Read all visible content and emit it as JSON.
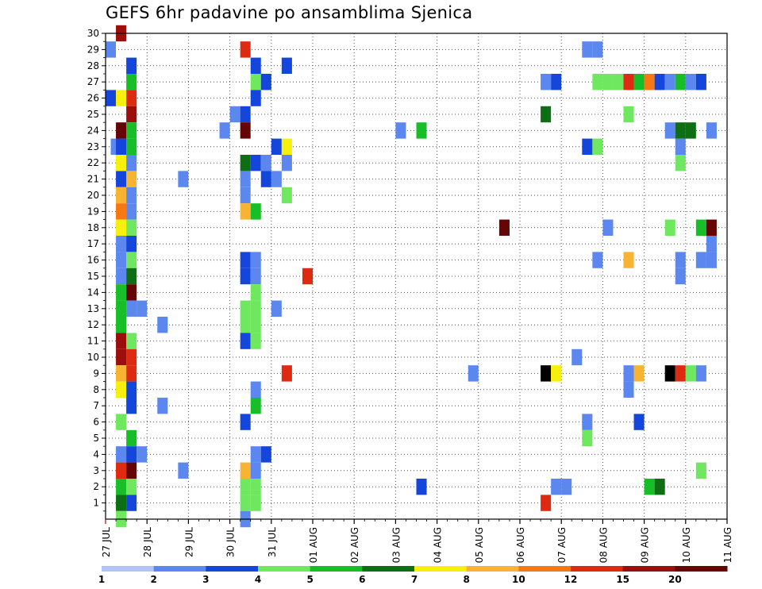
{
  "chart_data": {
    "type": "heatmap",
    "title": "GEFS 6hr padavine po ansamblima Sjenica",
    "xlabel": "",
    "ylabel": "",
    "x_tick_labels": [
      "27 JUL",
      "28 JUL",
      "29 JUL",
      "30 JUL",
      "31 JUL",
      "01 AUG",
      "02 AUG",
      "03 AUG",
      "04 AUG",
      "05 AUG",
      "06 AUG",
      "07 AUG",
      "08 AUG",
      "09 AUG",
      "10 AUG",
      "11 AUG"
    ],
    "x_range_days": [
      0,
      15
    ],
    "y_tick_labels": [
      "1",
      "2",
      "3",
      "4",
      "5",
      "6",
      "7",
      "8",
      "9",
      "10",
      "11",
      "12",
      "13",
      "14",
      "15",
      "16",
      "17",
      "18",
      "19",
      "20",
      "21",
      "22",
      "23",
      "24",
      "25",
      "26",
      "27",
      "28",
      "29",
      "30"
    ],
    "y_range": [
      0,
      30
    ],
    "grid": true,
    "colorbar": {
      "labels": [
        "1",
        "2",
        "3",
        "4",
        "5",
        "6",
        "7",
        "8",
        "10",
        "12",
        "15",
        "20"
      ],
      "colors": [
        "#b0c4f5",
        "#5b87ee",
        "#1546dc",
        "#6fe860",
        "#17be28",
        "#0d6e14",
        "#f7ef0c",
        "#f9b332",
        "#f77812",
        "#dd2a10",
        "#9c0d0d",
        "#650505"
      ]
    },
    "cells": [
      [
        0.125,
        29,
        1
      ],
      [
        0.125,
        26,
        2
      ],
      [
        0.25,
        23,
        1
      ],
      [
        0.375,
        23,
        2
      ],
      [
        0.375,
        21,
        2
      ],
      [
        0.375,
        16,
        1
      ],
      [
        0.375,
        17,
        1
      ],
      [
        0.375,
        12,
        4
      ],
      [
        0.375,
        11,
        10
      ],
      [
        0.375,
        10,
        10
      ],
      [
        0.375,
        9,
        7
      ],
      [
        0.375,
        8,
        6
      ],
      [
        0.375,
        6,
        3
      ],
      [
        0.375,
        4,
        1
      ],
      [
        0.375,
        3,
        9
      ],
      [
        0.375,
        2,
        4
      ],
      [
        0.375,
        1,
        5
      ],
      [
        0.375,
        0,
        3
      ],
      [
        0.375,
        30,
        10
      ],
      [
        0.375,
        26,
        6
      ],
      [
        0.375,
        24,
        11
      ],
      [
        0.375,
        22,
        6
      ],
      [
        0.375,
        20,
        7
      ],
      [
        0.375,
        19,
        8
      ],
      [
        0.375,
        18,
        6
      ],
      [
        0.375,
        15,
        1
      ],
      [
        0.375,
        14,
        4
      ],
      [
        0.375,
        13,
        4
      ],
      [
        0.625,
        28,
        2
      ],
      [
        0.625,
        27,
        4
      ],
      [
        0.625,
        26,
        9
      ],
      [
        0.625,
        25,
        10
      ],
      [
        0.625,
        24,
        4
      ],
      [
        0.625,
        23,
        4
      ],
      [
        0.625,
        22,
        1
      ],
      [
        0.625,
        21,
        7
      ],
      [
        0.625,
        20,
        1
      ],
      [
        0.625,
        19,
        1
      ],
      [
        0.625,
        18,
        3
      ],
      [
        0.625,
        17,
        2
      ],
      [
        0.625,
        16,
        3
      ],
      [
        0.625,
        15,
        5
      ],
      [
        0.625,
        14,
        11
      ],
      [
        0.625,
        13,
        1
      ],
      [
        0.625,
        11,
        3
      ],
      [
        0.625,
        10,
        9
      ],
      [
        0.625,
        9,
        9
      ],
      [
        0.625,
        8,
        2
      ],
      [
        0.625,
        7,
        2
      ],
      [
        0.625,
        5,
        4
      ],
      [
        0.625,
        4,
        2
      ],
      [
        0.625,
        3,
        11
      ],
      [
        0.625,
        2,
        3
      ],
      [
        0.625,
        1,
        2
      ],
      [
        0.875,
        13,
        1
      ],
      [
        0.875,
        4,
        1
      ],
      [
        1.375,
        12,
        1
      ],
      [
        1.375,
        7,
        1
      ],
      [
        1.875,
        21,
        1
      ],
      [
        1.875,
        3,
        1
      ],
      [
        2.875,
        24,
        1
      ],
      [
        3.125,
        25,
        1
      ],
      [
        3.375,
        29,
        9
      ],
      [
        3.375,
        25,
        2
      ],
      [
        3.375,
        24,
        11
      ],
      [
        3.375,
        22,
        5
      ],
      [
        3.375,
        21,
        1
      ],
      [
        3.375,
        20,
        1
      ],
      [
        3.375,
        19,
        7
      ],
      [
        3.375,
        16,
        2
      ],
      [
        3.375,
        15,
        2
      ],
      [
        3.375,
        13,
        3
      ],
      [
        3.375,
        12,
        3
      ],
      [
        3.375,
        11,
        2
      ],
      [
        3.375,
        6,
        2
      ],
      [
        3.375,
        3,
        7
      ],
      [
        3.375,
        2,
        3
      ],
      [
        3.375,
        1,
        3
      ],
      [
        3.375,
        0,
        1
      ],
      [
        3.625,
        28,
        2
      ],
      [
        3.625,
        27,
        3
      ],
      [
        3.625,
        26,
        2
      ],
      [
        3.625,
        22,
        2
      ],
      [
        3.625,
        19,
        4
      ],
      [
        3.625,
        16,
        1
      ],
      [
        3.625,
        15,
        1
      ],
      [
        3.625,
        14,
        3
      ],
      [
        3.625,
        13,
        3
      ],
      [
        3.625,
        12,
        3
      ],
      [
        3.625,
        11,
        3
      ],
      [
        3.625,
        8,
        1
      ],
      [
        3.625,
        7,
        4
      ],
      [
        3.625,
        4,
        1
      ],
      [
        3.625,
        3,
        1
      ],
      [
        3.625,
        2,
        3
      ],
      [
        3.625,
        1,
        3
      ],
      [
        3.875,
        27,
        2
      ],
      [
        3.875,
        22,
        1
      ],
      [
        3.875,
        21,
        2
      ],
      [
        3.875,
        4,
        2
      ],
      [
        4.125,
        23,
        2
      ],
      [
        4.125,
        21,
        1
      ],
      [
        4.125,
        13,
        1
      ],
      [
        4.375,
        28,
        2
      ],
      [
        4.375,
        23,
        6
      ],
      [
        4.375,
        22,
        1
      ],
      [
        4.375,
        20,
        3
      ],
      [
        4.375,
        9,
        9
      ],
      [
        4.875,
        15,
        9
      ],
      [
        7.125,
        24,
        1
      ],
      [
        7.625,
        2,
        2
      ],
      [
        7.625,
        24,
        4
      ],
      [
        8.875,
        9,
        1
      ],
      [
        9.625,
        18,
        11
      ],
      [
        10.625,
        27,
        1
      ],
      [
        10.625,
        25,
        5
      ],
      [
        10.625,
        9,
        12
      ],
      [
        10.625,
        1,
        9
      ],
      [
        10.875,
        27,
        2
      ],
      [
        10.875,
        9,
        6
      ],
      [
        10.875,
        2,
        1
      ],
      [
        11.125,
        2,
        1
      ],
      [
        11.375,
        10,
        1
      ],
      [
        11.625,
        29,
        1
      ],
      [
        11.625,
        23,
        2
      ],
      [
        11.625,
        6,
        1
      ],
      [
        11.625,
        5,
        3
      ],
      [
        11.875,
        29,
        1
      ],
      [
        11.875,
        27,
        3
      ],
      [
        11.875,
        23,
        3
      ],
      [
        11.875,
        16,
        1
      ],
      [
        12.125,
        27,
        3
      ],
      [
        12.125,
        18,
        1
      ],
      [
        12.375,
        27,
        3
      ],
      [
        12.625,
        27,
        9
      ],
      [
        12.625,
        25,
        3
      ],
      [
        12.625,
        16,
        7
      ],
      [
        12.625,
        9,
        1
      ],
      [
        12.625,
        8,
        1
      ],
      [
        12.875,
        27,
        4
      ],
      [
        12.875,
        9,
        7
      ],
      [
        12.875,
        6,
        2
      ],
      [
        13.125,
        27,
        8
      ],
      [
        13.125,
        2,
        4
      ],
      [
        13.375,
        27,
        2
      ],
      [
        13.375,
        2,
        5
      ],
      [
        13.625,
        27,
        1
      ],
      [
        13.625,
        24,
        1
      ],
      [
        13.625,
        18,
        3
      ],
      [
        13.625,
        9,
        12
      ],
      [
        13.875,
        27,
        4
      ],
      [
        13.875,
        24,
        5
      ],
      [
        13.875,
        23,
        1
      ],
      [
        13.875,
        22,
        3
      ],
      [
        13.875,
        16,
        1
      ],
      [
        13.875,
        15,
        1
      ],
      [
        13.875,
        9,
        9
      ],
      [
        14.125,
        27,
        1
      ],
      [
        14.125,
        24,
        5
      ],
      [
        14.125,
        9,
        3
      ],
      [
        14.375,
        27,
        2
      ],
      [
        14.375,
        9,
        1
      ],
      [
        14.375,
        3,
        3
      ],
      [
        14.375,
        18,
        4
      ],
      [
        14.375,
        16,
        1
      ],
      [
        14.625,
        24,
        1
      ],
      [
        14.625,
        18,
        11
      ],
      [
        14.625,
        17,
        1
      ],
      [
        14.625,
        16,
        1
      ]
    ]
  }
}
